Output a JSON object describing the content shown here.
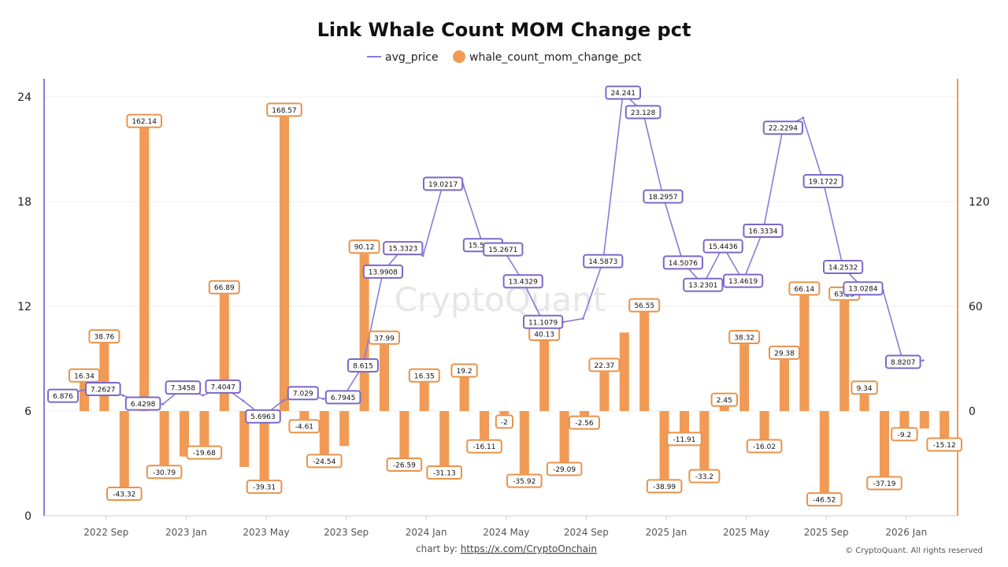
{
  "chart_data": {
    "type": "bar",
    "title": "Link Whale Count MOM Change pct",
    "watermark": "CryptoQuant",
    "footer_prefix": "chart by: ",
    "footer_link": "https://x.com/CryptoOnchain",
    "copyright": "© CryptoQuant. All rights reserved",
    "colors": {
      "line": "#8b7ad6",
      "bar": "#f19a55",
      "line_label_border": "#7b68c8",
      "bar_label_border": "#e8924a"
    },
    "y_left": {
      "range": [
        0,
        24
      ],
      "ticks": [
        0,
        6,
        12,
        18,
        24
      ]
    },
    "y_right": {
      "range": [
        -60,
        180
      ],
      "ticks": [
        0,
        60,
        120
      ]
    },
    "x_ticks": [
      "2022 Sep",
      "2023 Jan",
      "2023 May",
      "2023 Sep",
      "2024 Jan",
      "2024 May",
      "2024 Sep",
      "2025 Jan",
      "2025 May",
      "2025 Sep",
      "2026 Jan"
    ],
    "x_tick_month_index": [
      2,
      6,
      10,
      14,
      18,
      22,
      26,
      30,
      34,
      38,
      42
    ],
    "months": [
      "2022-07",
      "2022-08",
      "2022-09",
      "2022-10",
      "2022-11",
      "2022-12",
      "2023-01",
      "2023-02",
      "2023-03",
      "2023-04",
      "2023-05",
      "2023-06",
      "2023-07",
      "2023-08",
      "2023-09",
      "2023-10",
      "2023-11",
      "2023-12",
      "2024-01",
      "2024-02",
      "2024-03",
      "2024-04",
      "2024-05",
      "2024-06",
      "2024-07",
      "2024-08",
      "2024-09",
      "2024-10",
      "2024-11",
      "2024-12",
      "2025-01",
      "2025-02",
      "2025-03",
      "2025-04",
      "2025-05",
      "2025-06",
      "2025-07",
      "2025-08",
      "2025-09",
      "2025-10",
      "2025-11",
      "2025-12",
      "2026-01",
      "2026-02"
    ],
    "series": [
      {
        "name": "avg_price",
        "type": "line",
        "axis": "left",
        "values": [
          6.876,
          7.2,
          7.2627,
          6.9,
          6.4298,
          6.4,
          7.3458,
          6.9,
          7.4047,
          6.6,
          5.6963,
          6.6,
          7.029,
          6.7,
          6.7945,
          8.615,
          13.9908,
          15.3323,
          14.9,
          19.0217,
          19.0,
          15.5076,
          15.2671,
          13.4329,
          11.1079,
          11.1,
          11.3,
          14.5873,
          24.241,
          23.128,
          18.2957,
          14.5076,
          13.2301,
          15.4436,
          13.4619,
          16.3334,
          22.2294,
          22.8,
          19.1722,
          14.2532,
          13.0284,
          12.9,
          8.8207,
          8.9
        ],
        "labels": [
          "6.876",
          "",
          "7.2627",
          "",
          "6.4298",
          "",
          "7.3458",
          "",
          "7.4047",
          "",
          "5.6963",
          "",
          "7.029",
          "",
          "6.7945",
          "8.615",
          "13.9908",
          "15.3323",
          "",
          "19.0217",
          "",
          "15.5076",
          "15.2671",
          "13.4329",
          "11.1079",
          "",
          "",
          "14.5873",
          "24.241",
          "23.128",
          "18.2957",
          "14.5076",
          "13.2301",
          "15.4436",
          "13.4619",
          "16.3334",
          "22.2294",
          "",
          "19.1722",
          "14.2532",
          "13.0284",
          "",
          "8.8207",
          ""
        ]
      },
      {
        "name": "whale_count_mom_change_pct",
        "type": "bar",
        "axis": "right",
        "values": [
          16.34,
          38.76,
          -43.32,
          162.14,
          -30.79,
          -26.0,
          -19.68,
          66.89,
          -32.0,
          -39.31,
          168.57,
          -4.61,
          -24.54,
          -20.0,
          90.12,
          37.99,
          -26.59,
          16.35,
          -31.13,
          19.2,
          -16.11,
          -2,
          -35.92,
          40.13,
          -29.09,
          -2.56,
          22.37,
          45.0,
          56.55,
          -38.99,
          -11.91,
          -33.2,
          2.45,
          38.32,
          -16.02,
          29.38,
          66.14,
          -46.52,
          63.23,
          9.34,
          -37.19,
          -9.2,
          -10.0,
          -15.12
        ],
        "labels": [
          "16.34",
          "38.76",
          "-43.32",
          "162.14",
          "-30.79",
          "",
          "-19.68",
          "66.89",
          "",
          "-39.31",
          "168.57",
          "-4.61",
          "-24.54",
          "",
          "90.12",
          "37.99",
          "-26.59",
          "16.35",
          "-31.13",
          "19.2",
          "-16.11",
          "-2",
          "-35.92",
          "40.13",
          "-29.09",
          "-2.56",
          "22.37",
          "",
          "56.55",
          "-38.99",
          "-11.91",
          "-33.2",
          "2.45",
          "38.32",
          "-16.02",
          "29.38",
          "66.14",
          "-46.52",
          "63.23",
          "9.34",
          "-37.19",
          "-9.2",
          "",
          "-15.12"
        ]
      }
    ],
    "legend": {
      "placement": "top-center",
      "items": [
        "avg_price",
        "whale_count_mom_change_pct"
      ]
    }
  }
}
